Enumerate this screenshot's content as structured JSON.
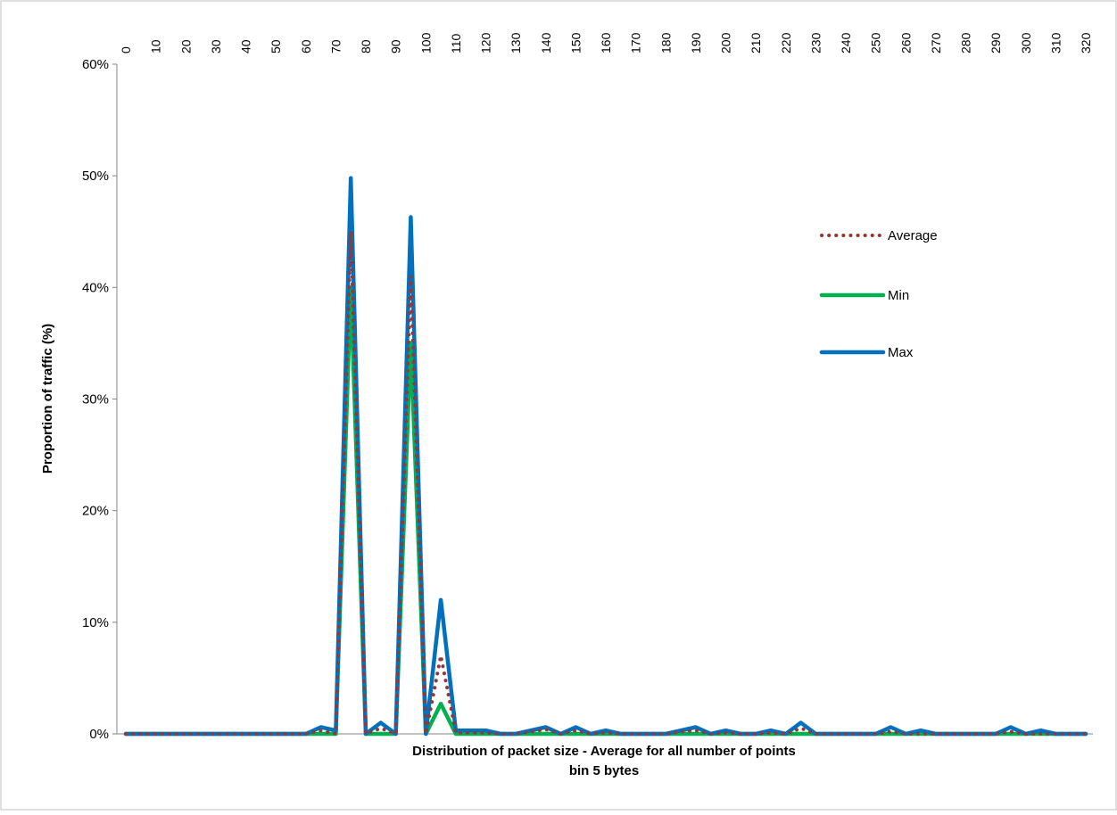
{
  "chart_data": {
    "type": "line",
    "title": "",
    "xlabel": "Distribution of packet size - Average for all number of points",
    "xlabel_line2": "bin 5 bytes",
    "ylabel": "Proportion of traffic (%)",
    "ylim": [
      0,
      60
    ],
    "y_ticks": [
      "0%",
      "10%",
      "20%",
      "30%",
      "40%",
      "50%",
      "60%"
    ],
    "x_axis_position": "top",
    "x_tick_labels": [
      "0",
      "10",
      "20",
      "30",
      "40",
      "50",
      "60",
      "70",
      "80",
      "90",
      "100",
      "110",
      "120",
      "130",
      "140",
      "150",
      "160",
      "170",
      "180",
      "190",
      "200",
      "210",
      "220",
      "230",
      "240",
      "250",
      "260",
      "270",
      "280",
      "290",
      "300",
      "310",
      "320"
    ],
    "x": [
      0,
      5,
      10,
      15,
      20,
      25,
      30,
      35,
      40,
      45,
      50,
      55,
      60,
      65,
      70,
      75,
      80,
      85,
      90,
      95,
      100,
      105,
      110,
      115,
      120,
      125,
      130,
      135,
      140,
      145,
      150,
      155,
      160,
      165,
      170,
      175,
      180,
      185,
      190,
      195,
      200,
      205,
      210,
      215,
      220,
      225,
      230,
      235,
      240,
      245,
      250,
      255,
      260,
      265,
      270,
      275,
      280,
      285,
      290,
      295,
      300,
      305,
      310,
      315,
      320
    ],
    "grid": false,
    "legend": "right",
    "series": [
      {
        "name": "Average",
        "color": "#953735",
        "style": "dotted",
        "values": [
          0,
          0,
          0,
          0,
          0,
          0,
          0,
          0,
          0,
          0,
          0,
          0,
          0,
          0.3,
          0,
          45,
          0,
          0.5,
          0,
          41,
          0,
          7,
          0.1,
          0.1,
          0.1,
          0,
          0,
          0.2,
          0.4,
          0,
          0.3,
          0,
          0.1,
          0,
          0,
          0,
          0,
          0.2,
          0.3,
          0,
          0.1,
          0,
          0,
          0.1,
          0,
          0.5,
          0,
          0,
          0,
          0,
          0,
          0.2,
          0,
          0,
          0,
          0,
          0,
          0,
          0,
          0.2,
          0,
          0,
          0,
          0,
          0
        ]
      },
      {
        "name": "Min",
        "color": "#00B050",
        "style": "solid",
        "values": [
          0,
          0,
          0,
          0,
          0,
          0,
          0,
          0,
          0,
          0,
          0,
          0,
          0,
          0,
          0,
          40,
          0,
          0,
          0,
          35,
          0,
          2.7,
          0,
          0,
          0,
          0,
          0,
          0,
          0,
          0,
          0,
          0,
          0,
          0,
          0,
          0,
          0,
          0,
          0,
          0,
          0,
          0,
          0,
          0,
          0,
          0,
          0,
          0,
          0,
          0,
          0,
          0,
          0,
          0,
          0,
          0,
          0,
          0,
          0,
          0,
          0,
          0,
          0,
          0,
          0
        ]
      },
      {
        "name": "Max",
        "color": "#0070C0",
        "style": "solid",
        "values": [
          0,
          0,
          0,
          0,
          0,
          0,
          0,
          0,
          0,
          0,
          0,
          0,
          0,
          0.6,
          0.3,
          49.8,
          0,
          1,
          0,
          46.3,
          0,
          12,
          0.3,
          0.3,
          0.3,
          0,
          0,
          0.3,
          0.6,
          0,
          0.6,
          0,
          0.3,
          0,
          0,
          0,
          0,
          0.3,
          0.6,
          0,
          0.3,
          0,
          0,
          0.3,
          0,
          1,
          0,
          0,
          0,
          0,
          0,
          0.6,
          0,
          0.3,
          0,
          0,
          0,
          0,
          0,
          0.6,
          0,
          0.3,
          0,
          0,
          0
        ]
      }
    ]
  }
}
